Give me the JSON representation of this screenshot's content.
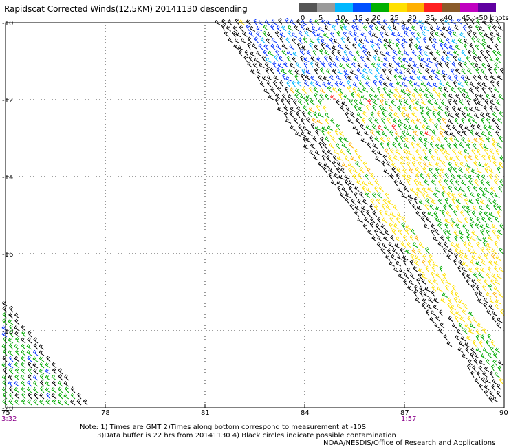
{
  "title": "Rapidscat Corrected Winds(12.5KM) 20141130 descending",
  "legend": {
    "labels": [
      "0",
      "5",
      "10",
      "15",
      "20",
      "25",
      "30",
      "35",
      "40",
      "45",
      ">50 knots"
    ],
    "colors": [
      "#555555",
      "#9a9a9a",
      "#00b7ff",
      "#0050ff",
      "#00b000",
      "#ffe000",
      "#ffb000",
      "#ff2020",
      "#8a5a2a",
      "#c000c0",
      "#6000a0"
    ]
  },
  "latitude_labels": [
    "-10",
    "-12",
    "-14",
    "-16",
    "-18",
    "-20"
  ],
  "longitude_labels": [
    "75",
    "78",
    "81",
    "84",
    "87",
    "90"
  ],
  "pass_times": [
    "3:32",
    "1:57"
  ],
  "pass_time_color": "#8a008a",
  "notes": {
    "line1": "Note: 1) Times are GMT 2)Times along bottom correspond to measurement at -10S",
    "line2": "3)Data buffer is 22 hrs from 20141130 4) Black circles indicate possible contamination",
    "line3": "NOAA/NESDIS/Office of Research and Applications"
  },
  "wind_colors": {
    "calm": "#000000",
    "light": "#0030ff",
    "fresh": "#00aa00",
    "strong": "#ffe000",
    "gale": "#ffb000",
    "storm": "#ff2020",
    "cyan": "#00b7ff"
  }
}
